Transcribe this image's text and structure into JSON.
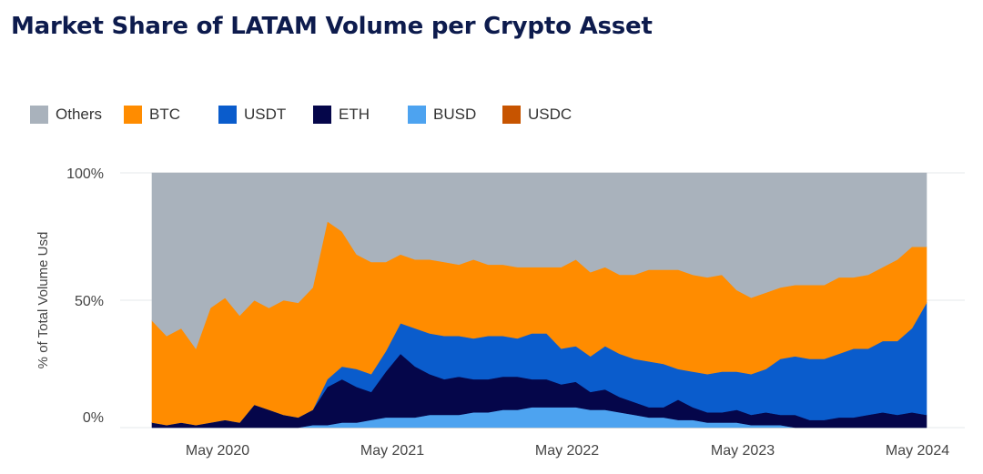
{
  "page": {
    "title": "Market Share of LATAM Volume per Crypto Asset"
  },
  "chart_data": {
    "type": "area",
    "stacked": true,
    "normalized": true,
    "title": "Market Share of LATAM Volume per Crypto Asset",
    "xlabel": "",
    "ylabel": "% of Total Volume Usd",
    "legend_position": "top-left",
    "grid": true,
    "x_ticks": [
      "May 2020",
      "May 2021",
      "May 2022",
      "May 2023",
      "May 2024"
    ],
    "y_ticks": [
      "0%",
      "50%",
      "100%"
    ],
    "ylim": [
      0,
      100
    ],
    "x": [
      "2020-01",
      "2020-02",
      "2020-03",
      "2020-04",
      "2020-05",
      "2020-06",
      "2020-07",
      "2020-08",
      "2020-09",
      "2020-10",
      "2020-11",
      "2020-12",
      "2021-01",
      "2021-02",
      "2021-03",
      "2021-04",
      "2021-05",
      "2021-06",
      "2021-07",
      "2021-08",
      "2021-09",
      "2021-10",
      "2021-11",
      "2021-12",
      "2022-01",
      "2022-02",
      "2022-03",
      "2022-04",
      "2022-05",
      "2022-06",
      "2022-07",
      "2022-08",
      "2022-09",
      "2022-10",
      "2022-11",
      "2022-12",
      "2023-01",
      "2023-02",
      "2023-03",
      "2023-04",
      "2023-05",
      "2023-06",
      "2023-07",
      "2023-08",
      "2023-09",
      "2023-10",
      "2023-11",
      "2023-12",
      "2024-01",
      "2024-02",
      "2024-03",
      "2024-04",
      "2024-05",
      "2024-06"
    ],
    "series": [
      {
        "name": "USDC",
        "color": "#c75400",
        "values": [
          0,
          0,
          0,
          0,
          0,
          0,
          0,
          0,
          0,
          0,
          0,
          0,
          0,
          0,
          0,
          0,
          0,
          0,
          0,
          0,
          0,
          0,
          0,
          0,
          0,
          0,
          0,
          0,
          0,
          0,
          0,
          0,
          0,
          0,
          0,
          0,
          0,
          0,
          0,
          0,
          0,
          0,
          0,
          0,
          0,
          0,
          0,
          0,
          0,
          0,
          0,
          0,
          0,
          0
        ]
      },
      {
        "name": "BUSD",
        "color": "#4da3f0",
        "values": [
          0,
          0,
          0,
          0,
          0,
          0,
          0,
          0,
          0,
          0,
          0,
          1,
          1,
          2,
          2,
          3,
          4,
          4,
          4,
          5,
          5,
          5,
          6,
          6,
          7,
          7,
          8,
          8,
          8,
          8,
          7,
          7,
          6,
          5,
          4,
          4,
          3,
          3,
          2,
          2,
          2,
          1,
          1,
          1,
          0,
          0,
          0,
          0,
          0,
          0,
          0,
          0,
          0,
          0
        ]
      },
      {
        "name": "ETH",
        "color": "#05064a",
        "values": [
          2,
          1,
          2,
          1,
          2,
          3,
          2,
          9,
          7,
          5,
          4,
          6,
          15,
          17,
          14,
          11,
          18,
          25,
          20,
          16,
          14,
          15,
          13,
          13,
          13,
          13,
          11,
          11,
          9,
          10,
          7,
          8,
          6,
          5,
          4,
          4,
          8,
          5,
          4,
          4,
          5,
          4,
          5,
          4,
          5,
          3,
          3,
          4,
          4,
          5,
          6,
          5,
          6,
          5
        ]
      },
      {
        "name": "USDT",
        "color": "#0a5ccc",
        "values": [
          0,
          0,
          0,
          0,
          0,
          0,
          0,
          0,
          0,
          0,
          0,
          0,
          3,
          5,
          7,
          7,
          8,
          12,
          15,
          16,
          17,
          16,
          16,
          17,
          16,
          15,
          18,
          18,
          14,
          14,
          14,
          17,
          17,
          17,
          18,
          17,
          12,
          14,
          15,
          16,
          15,
          16,
          17,
          22,
          23,
          24,
          24,
          25,
          27,
          26,
          28,
          29,
          33,
          44
        ]
      },
      {
        "name": "BTC",
        "color": "#ff8c00",
        "values": [
          40,
          35,
          37,
          30,
          45,
          48,
          42,
          41,
          40,
          45,
          45,
          48,
          62,
          53,
          45,
          44,
          35,
          27,
          27,
          29,
          29,
          28,
          31,
          28,
          28,
          28,
          26,
          26,
          32,
          34,
          33,
          31,
          31,
          33,
          36,
          37,
          39,
          38,
          38,
          38,
          32,
          30,
          30,
          28,
          28,
          29,
          29,
          30,
          28,
          29,
          29,
          32,
          32,
          22
        ]
      },
      {
        "name": "Others",
        "color": "#a9b2bc",
        "values": [
          58,
          64,
          61,
          69,
          53,
          49,
          56,
          50,
          53,
          50,
          51,
          45,
          19,
          23,
          32,
          35,
          35,
          32,
          34,
          34,
          35,
          36,
          34,
          36,
          36,
          37,
          37,
          37,
          37,
          34,
          39,
          37,
          40,
          40,
          38,
          38,
          38,
          40,
          41,
          40,
          46,
          49,
          47,
          45,
          44,
          44,
          44,
          41,
          41,
          40,
          37,
          34,
          29,
          29
        ]
      }
    ]
  },
  "legend": {
    "items": [
      {
        "label": "Others",
        "color": "#a9b2bc"
      },
      {
        "label": "BTC",
        "color": "#ff8c00"
      },
      {
        "label": "USDT",
        "color": "#0a5ccc"
      },
      {
        "label": "ETH",
        "color": "#05064a"
      },
      {
        "label": "BUSD",
        "color": "#4da3f0"
      },
      {
        "label": "USDC",
        "color": "#c75400"
      }
    ]
  }
}
